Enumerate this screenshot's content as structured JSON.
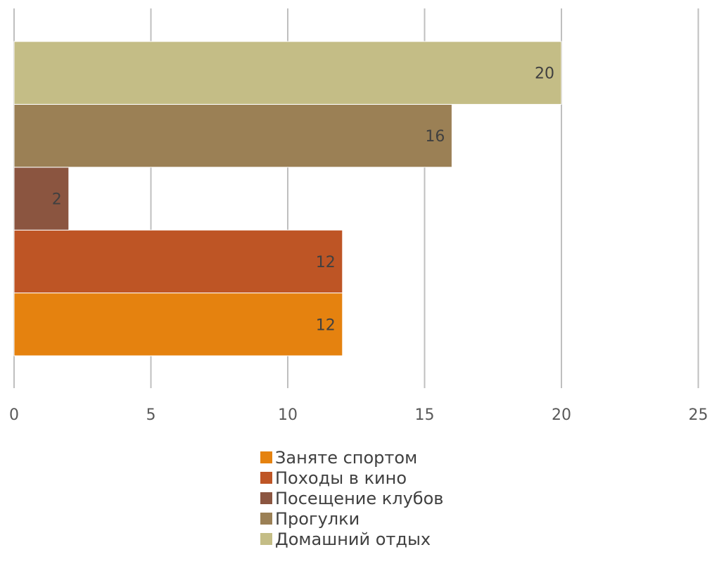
{
  "chart_data": {
    "type": "bar",
    "orientation": "horizontal",
    "title": "",
    "xlabel": "",
    "ylabel": "",
    "xlim": [
      0,
      25
    ],
    "x_ticks": [
      0,
      5,
      10,
      15,
      20,
      25
    ],
    "grid": true,
    "legend_position": "bottom",
    "series": [
      {
        "name": "Заняте спортом",
        "value": 12,
        "color": "#E5820F"
      },
      {
        "name": "Походы в кино",
        "value": 12,
        "color": "#BE5525"
      },
      {
        "name": "Посещение клубов",
        "value": 2,
        "color": "#8B5540"
      },
      {
        "name": "Прогулки",
        "value": 16,
        "color": "#9B8055"
      },
      {
        "name": "Домашний отдых",
        "value": 20,
        "color": "#C4BD86"
      }
    ]
  }
}
